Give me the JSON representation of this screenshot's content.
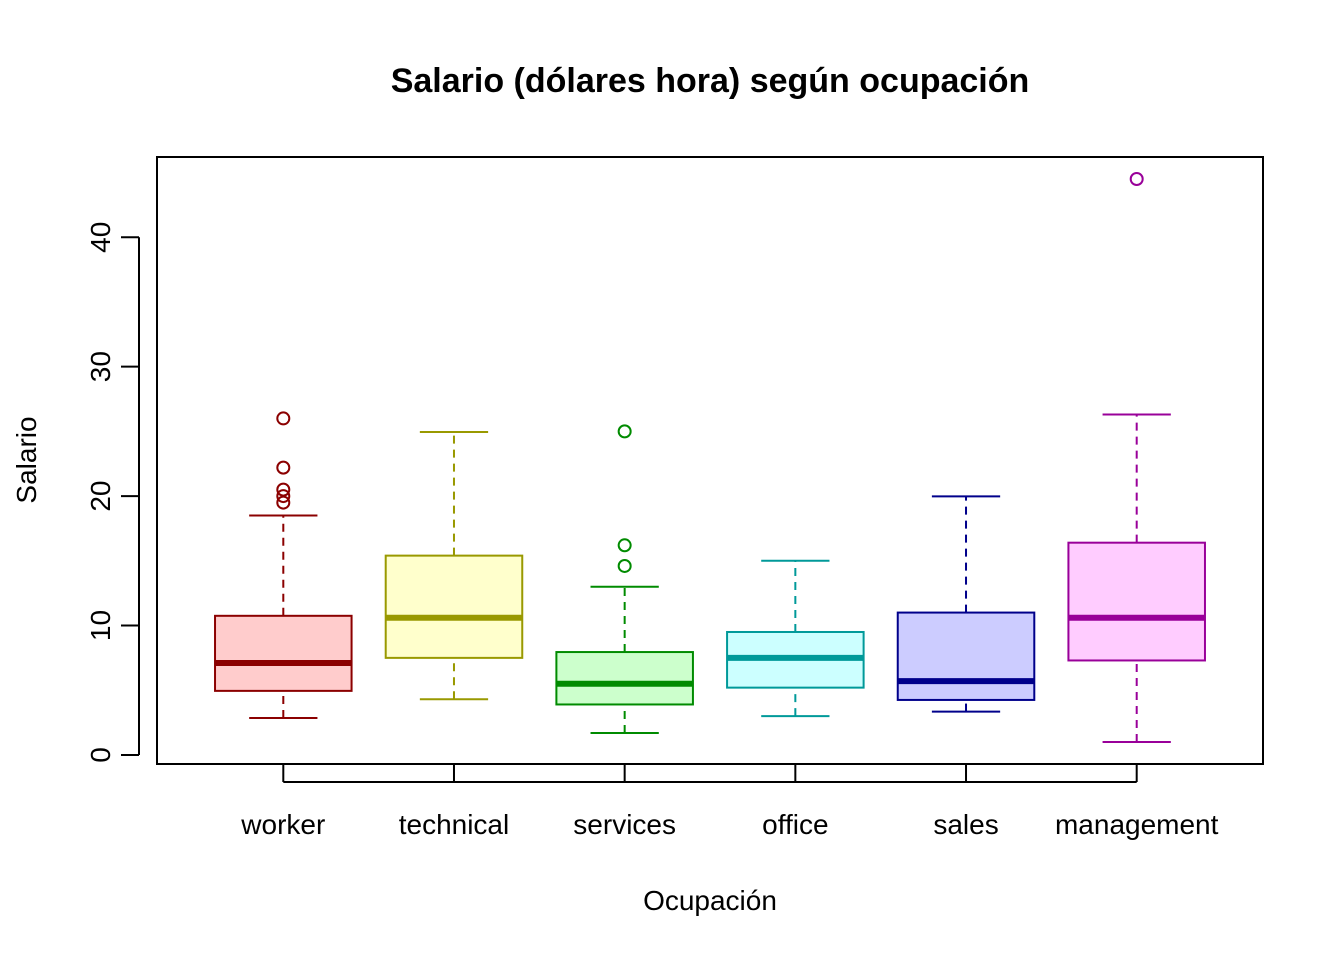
{
  "chart_data": {
    "type": "boxplot",
    "title": "Salario (dólares hora) según ocupación",
    "xlabel": "Ocupación",
    "ylabel": "Salario",
    "ylim": [
      -0.7,
      46.2
    ],
    "yticks": [
      0,
      10,
      20,
      30,
      40
    ],
    "categories": [
      "worker",
      "technical",
      "services",
      "office",
      "sales",
      "management"
    ],
    "boxes": [
      {
        "name": "worker",
        "whisker_low": 2.85,
        "q1": 4.95,
        "median": 7.1,
        "q3": 10.75,
        "whisker_high": 18.5,
        "outliers": [
          19.5,
          20.0,
          20.5,
          22.2,
          26.0
        ],
        "line_color": "#8b0000",
        "fill_color": "#ffcccc"
      },
      {
        "name": "technical",
        "whisker_low": 4.3,
        "q1": 7.5,
        "median": 10.6,
        "q3": 15.4,
        "whisker_high": 24.95,
        "outliers": [],
        "line_color": "#999900",
        "fill_color": "#ffffcc"
      },
      {
        "name": "services",
        "whisker_low": 1.7,
        "q1": 3.9,
        "median": 5.5,
        "q3": 7.95,
        "whisker_high": 13.0,
        "outliers": [
          14.6,
          16.2,
          25.0
        ],
        "line_color": "#008b00",
        "fill_color": "#ccffcc"
      },
      {
        "name": "office",
        "whisker_low": 3.0,
        "q1": 5.2,
        "median": 7.5,
        "q3": 9.5,
        "whisker_high": 15.0,
        "outliers": [],
        "line_color": "#009999",
        "fill_color": "#ccffff"
      },
      {
        "name": "sales",
        "whisker_low": 3.35,
        "q1": 4.25,
        "median": 5.7,
        "q3": 11.0,
        "whisker_high": 19.98,
        "outliers": [],
        "line_color": "#00008b",
        "fill_color": "#ccccff"
      },
      {
        "name": "management",
        "whisker_low": 1.0,
        "q1": 7.3,
        "median": 10.6,
        "q3": 16.4,
        "whisker_high": 26.3,
        "outliers": [
          44.5
        ],
        "line_color": "#990099",
        "fill_color": "#ffccff"
      }
    ]
  }
}
